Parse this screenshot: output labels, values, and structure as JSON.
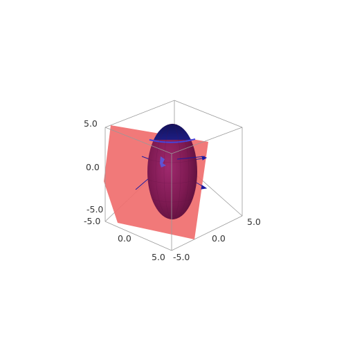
{
  "chart_data": {
    "type": "surface3d",
    "axes": {
      "x": {
        "range": [
          -5,
          5
        ],
        "ticks": [
          "-5.0",
          "0.0",
          "5.0"
        ]
      },
      "y": {
        "range": [
          -5,
          5
        ],
        "ticks": [
          "-5.0",
          "0.0",
          "5.0"
        ]
      },
      "z": {
        "range": [
          -5,
          5
        ],
        "ticks": [
          "5.0",
          "0.0",
          "-5.0"
        ]
      }
    },
    "bounding_box": true,
    "surfaces": [
      {
        "shape": "ellipsoid",
        "semi_axes": [
          2.2,
          2.2,
          4.8
        ],
        "center": [
          0,
          0,
          0
        ],
        "color_top": "#3a3ad6",
        "color_body": "#8a1f5a"
      },
      {
        "shape": "plane",
        "color": "#f06e6e",
        "opacity": 0.9
      }
    ],
    "vectors": {
      "color": "#1a1aa0"
    }
  }
}
